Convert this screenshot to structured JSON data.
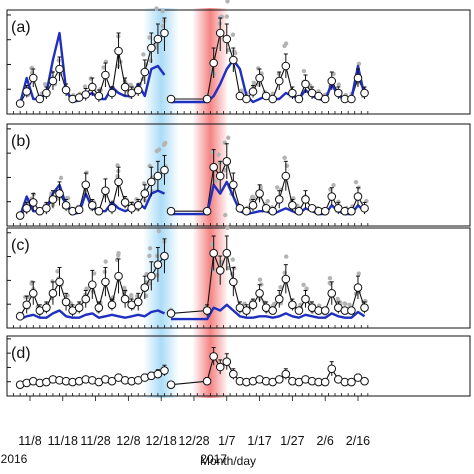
{
  "figure": {
    "x_title": "Month/day",
    "year_labels": [
      {
        "label": "2016",
        "date": "11/3"
      },
      {
        "label": "2017",
        "date": "1/3"
      }
    ],
    "x_tick_labels": [
      "11/8",
      "11/18",
      "11/28",
      "12/8",
      "12/18",
      "12/28",
      "1/7",
      "1/17",
      "1/27",
      "2/6",
      "2/16"
    ],
    "highlight_bands": [
      {
        "name": "blue-band",
        "center": "12/18",
        "color": "#8fd0f5"
      },
      {
        "name": "red-band",
        "center": "1/2",
        "color": "#f25a5a"
      }
    ],
    "gap": {
      "from": "12/20",
      "to": "12/31"
    },
    "colors": {
      "model_line": "#1f2fbf",
      "obs_dots": "#b3b3b3",
      "mean_line": "#111111",
      "marker_fill": "#ffffff"
    }
  },
  "chart_data": [
    {
      "panel": "(a)",
      "type": "line",
      "x": [
        "11/5",
        "11/7",
        "11/9",
        "11/11",
        "11/13",
        "11/15",
        "11/17",
        "11/19",
        "11/21",
        "11/23",
        "11/25",
        "11/27",
        "11/29",
        "12/1",
        "12/3",
        "12/5",
        "12/7",
        "12/9",
        "12/11",
        "12/13",
        "12/15",
        "12/17",
        "12/19",
        "12/21",
        "1/1",
        "1/3",
        "1/5",
        "1/7",
        "1/9",
        "1/11",
        "1/13",
        "1/15",
        "1/17",
        "1/19",
        "1/21",
        "1/23",
        "1/25",
        "1/27",
        "1/29",
        "1/31",
        "2/2",
        "2/4",
        "2/6",
        "2/8",
        "2/10",
        "2/12",
        "2/14",
        "2/16",
        "2/18"
      ],
      "series": [
        {
          "role": "mean-with-error",
          "values": [
            0.15,
            0.55,
            1.0,
            0.3,
            0.5,
            0.9,
            1.3,
            0.6,
            0.3,
            0.35,
            0.45,
            0.7,
            0.4,
            1.1,
            0.5,
            1.9,
            0.7,
            0.5,
            0.6,
            1.2,
            2.0,
            2.3,
            2.5,
            0.3,
            0.3,
            1.5,
            2.5,
            2.3,
            1.6,
            0.4,
            0.3,
            0.55,
            1.0,
            0.4,
            0.3,
            0.9,
            1.4,
            0.5,
            0.3,
            0.8,
            0.5,
            0.4,
            0.3,
            0.9,
            0.5,
            0.3,
            0.3,
            1.0,
            0.5
          ],
          "errors": [
            0.1,
            0.2,
            0.3,
            0.1,
            0.2,
            0.3,
            0.4,
            0.2,
            0.1,
            0.1,
            0.2,
            0.3,
            0.2,
            0.4,
            0.2,
            0.6,
            0.3,
            0.2,
            0.2,
            0.4,
            0.5,
            0.5,
            0.6,
            0.1,
            0.1,
            0.5,
            0.6,
            0.5,
            0.4,
            0.1,
            0.1,
            0.2,
            0.3,
            0.1,
            0.1,
            0.3,
            0.4,
            0.2,
            0.1,
            0.3,
            0.2,
            0.1,
            0.1,
            0.3,
            0.2,
            0.1,
            0.1,
            0.3,
            0.2
          ]
        },
        {
          "role": "model",
          "values": [
            0.15,
            1.0,
            0.3,
            0.3,
            0.5,
            1.6,
            2.5,
            0.6,
            0.2,
            0.25,
            0.4,
            0.5,
            0.3,
            0.3,
            0.7,
            0.5,
            0.4,
            0.4,
            0.8,
            0.4,
            1.3,
            1.4,
            1.1,
            0.2,
            0.2,
            0.4,
            0.8,
            1.3,
            1.6,
            1.3,
            0.4,
            0.2,
            0.3,
            0.4,
            0.3,
            0.3,
            0.5,
            0.4,
            0.3,
            0.6,
            0.4,
            0.3,
            0.25,
            0.8,
            0.4,
            0.3,
            0.3,
            1.4,
            0.4
          ]
        }
      ],
      "ylim": [
        0,
        3
      ]
    },
    {
      "panel": "(b)",
      "type": "line",
      "x": [
        "11/5",
        "11/7",
        "11/9",
        "11/11",
        "11/13",
        "11/15",
        "11/17",
        "11/19",
        "11/21",
        "11/23",
        "11/25",
        "11/27",
        "11/29",
        "12/1",
        "12/3",
        "12/5",
        "12/7",
        "12/9",
        "12/11",
        "12/13",
        "12/15",
        "12/17",
        "12/19",
        "12/21",
        "1/1",
        "1/3",
        "1/5",
        "1/7",
        "1/9",
        "1/11",
        "1/13",
        "1/15",
        "1/17",
        "1/19",
        "1/21",
        "1/23",
        "1/25",
        "1/27",
        "1/29",
        "1/31",
        "2/2",
        "2/4",
        "2/6",
        "2/8",
        "2/10",
        "2/12",
        "2/14",
        "2/16",
        "2/18"
      ],
      "series": [
        {
          "role": "mean-with-error",
          "values": [
            0.15,
            0.4,
            0.6,
            0.3,
            0.4,
            0.7,
            0.9,
            0.5,
            0.3,
            0.35,
            1.2,
            0.5,
            0.3,
            1.0,
            0.4,
            1.3,
            0.6,
            0.4,
            0.5,
            0.9,
            1.3,
            1.5,
            1.7,
            0.3,
            0.3,
            1.8,
            1.5,
            2.0,
            1.2,
            0.4,
            0.3,
            0.5,
            0.9,
            0.4,
            0.3,
            0.7,
            1.5,
            0.5,
            0.3,
            0.7,
            0.4,
            0.3,
            0.3,
            0.8,
            0.4,
            0.3,
            0.3,
            0.8,
            0.4
          ],
          "errors": [
            0.1,
            0.2,
            0.3,
            0.1,
            0.2,
            0.3,
            0.4,
            0.2,
            0.1,
            0.1,
            0.4,
            0.2,
            0.1,
            0.4,
            0.2,
            0.5,
            0.2,
            0.2,
            0.2,
            0.3,
            0.5,
            0.5,
            0.5,
            0.1,
            0.1,
            0.6,
            0.5,
            0.6,
            0.4,
            0.1,
            0.1,
            0.2,
            0.3,
            0.1,
            0.1,
            0.3,
            0.5,
            0.2,
            0.1,
            0.3,
            0.1,
            0.1,
            0.1,
            0.3,
            0.2,
            0.1,
            0.1,
            0.3,
            0.2
          ]
        },
        {
          "role": "model",
          "values": [
            0.15,
            0.8,
            0.3,
            0.3,
            0.4,
            0.9,
            1.2,
            0.5,
            0.2,
            0.25,
            0.9,
            0.4,
            0.3,
            0.3,
            0.6,
            0.4,
            0.3,
            0.4,
            0.6,
            0.4,
            0.9,
            1.0,
            0.9,
            0.2,
            0.2,
            1.2,
            0.9,
            1.3,
            0.8,
            0.3,
            0.2,
            0.25,
            0.3,
            0.3,
            0.2,
            0.3,
            0.4,
            0.3,
            0.2,
            0.4,
            0.3,
            0.2,
            0.2,
            0.5,
            0.3,
            0.2,
            0.2,
            0.5,
            0.3
          ]
        }
      ],
      "ylim": [
        0,
        3
      ]
    },
    {
      "panel": "(c)",
      "type": "line",
      "x": [
        "11/5",
        "11/7",
        "11/9",
        "11/11",
        "11/13",
        "11/15",
        "11/17",
        "11/19",
        "11/21",
        "11/23",
        "11/25",
        "11/27",
        "11/29",
        "12/1",
        "12/3",
        "12/5",
        "12/7",
        "12/9",
        "12/11",
        "12/13",
        "12/15",
        "12/17",
        "12/19",
        "12/21",
        "1/1",
        "1/3",
        "1/5",
        "1/7",
        "1/9",
        "1/11",
        "1/13",
        "1/15",
        "1/17",
        "1/19",
        "1/21",
        "1/23",
        "1/25",
        "1/27",
        "1/29",
        "1/31",
        "2/2",
        "2/4",
        "2/6",
        "2/8",
        "2/10",
        "2/12",
        "2/14",
        "2/16",
        "2/18"
      ],
      "series": [
        {
          "role": "mean-with-error",
          "values": [
            0.2,
            0.6,
            1.0,
            0.4,
            0.5,
            1.0,
            1.4,
            0.7,
            0.4,
            0.5,
            0.8,
            1.3,
            0.5,
            1.4,
            0.6,
            1.6,
            0.8,
            0.6,
            0.7,
            1.2,
            1.6,
            2.0,
            2.3,
            0.3,
            0.4,
            2.4,
            1.8,
            2.4,
            1.4,
            0.5,
            0.4,
            0.6,
            1.0,
            0.5,
            0.4,
            0.8,
            1.5,
            0.6,
            0.4,
            0.8,
            0.5,
            0.4,
            0.4,
            1.0,
            0.5,
            0.4,
            0.4,
            1.2,
            0.5
          ],
          "errors": [
            0.1,
            0.3,
            0.4,
            0.2,
            0.2,
            0.4,
            0.5,
            0.3,
            0.2,
            0.2,
            0.3,
            0.5,
            0.2,
            0.5,
            0.2,
            0.6,
            0.3,
            0.2,
            0.3,
            0.4,
            0.5,
            0.6,
            0.6,
            0.1,
            0.2,
            0.6,
            0.5,
            0.6,
            0.5,
            0.2,
            0.2,
            0.2,
            0.3,
            0.2,
            0.1,
            0.3,
            0.5,
            0.2,
            0.1,
            0.3,
            0.2,
            0.1,
            0.1,
            0.4,
            0.2,
            0.1,
            0.1,
            0.4,
            0.2
          ]
        },
        {
          "role": "model",
          "values": [
            0.1,
            0.2,
            0.25,
            0.15,
            0.15,
            0.3,
            0.4,
            0.2,
            0.15,
            0.15,
            0.25,
            0.3,
            0.15,
            0.2,
            0.25,
            0.2,
            0.15,
            0.2,
            0.25,
            0.2,
            0.35,
            0.4,
            0.3,
            0.1,
            0.1,
            0.5,
            0.4,
            0.6,
            0.4,
            0.2,
            0.15,
            0.15,
            0.2,
            0.2,
            0.15,
            0.2,
            0.3,
            0.2,
            0.15,
            0.25,
            0.2,
            0.15,
            0.15,
            0.3,
            0.2,
            0.15,
            0.15,
            0.35,
            0.2
          ]
        }
      ],
      "ylim": [
        0,
        3
      ]
    },
    {
      "panel": "(d)",
      "type": "line",
      "x": [
        "11/5",
        "11/7",
        "11/9",
        "11/11",
        "11/13",
        "11/15",
        "11/17",
        "11/19",
        "11/21",
        "11/23",
        "11/25",
        "11/27",
        "11/29",
        "12/1",
        "12/3",
        "12/5",
        "12/7",
        "12/9",
        "12/11",
        "12/13",
        "12/15",
        "12/17",
        "12/19",
        "12/21",
        "1/1",
        "1/3",
        "1/5",
        "1/7",
        "1/9",
        "1/11",
        "1/13",
        "1/15",
        "1/17",
        "1/19",
        "1/21",
        "1/23",
        "1/25",
        "1/27",
        "1/29",
        "1/31",
        "2/2",
        "2/4",
        "2/6",
        "2/8",
        "2/10",
        "2/12",
        "2/14",
        "2/16",
        "2/18"
      ],
      "series": [
        {
          "role": "mean-with-error",
          "values": [
            0.3,
            0.4,
            0.5,
            0.4,
            0.45,
            0.6,
            0.55,
            0.5,
            0.45,
            0.5,
            0.6,
            0.55,
            0.45,
            0.6,
            0.5,
            0.7,
            0.55,
            0.5,
            0.55,
            0.7,
            0.8,
            0.9,
            1.1,
            0.3,
            0.5,
            1.9,
            1.3,
            1.6,
            0.9,
            0.5,
            0.45,
            0.5,
            0.6,
            0.5,
            0.45,
            0.6,
            0.9,
            0.5,
            0.45,
            0.6,
            0.5,
            0.45,
            0.45,
            1.2,
            0.6,
            0.45,
            0.45,
            0.7,
            0.5
          ],
          "errors": [
            0.1,
            0.1,
            0.15,
            0.1,
            0.1,
            0.15,
            0.15,
            0.1,
            0.1,
            0.1,
            0.15,
            0.15,
            0.1,
            0.15,
            0.1,
            0.2,
            0.1,
            0.1,
            0.15,
            0.2,
            0.2,
            0.25,
            0.3,
            0.1,
            0.2,
            0.5,
            0.4,
            0.45,
            0.3,
            0.1,
            0.1,
            0.1,
            0.15,
            0.1,
            0.1,
            0.15,
            0.3,
            0.1,
            0.1,
            0.15,
            0.1,
            0.1,
            0.1,
            0.4,
            0.2,
            0.1,
            0.1,
            0.2,
            0.1
          ]
        }
      ],
      "ylim": [
        0,
        2.6
      ]
    }
  ]
}
